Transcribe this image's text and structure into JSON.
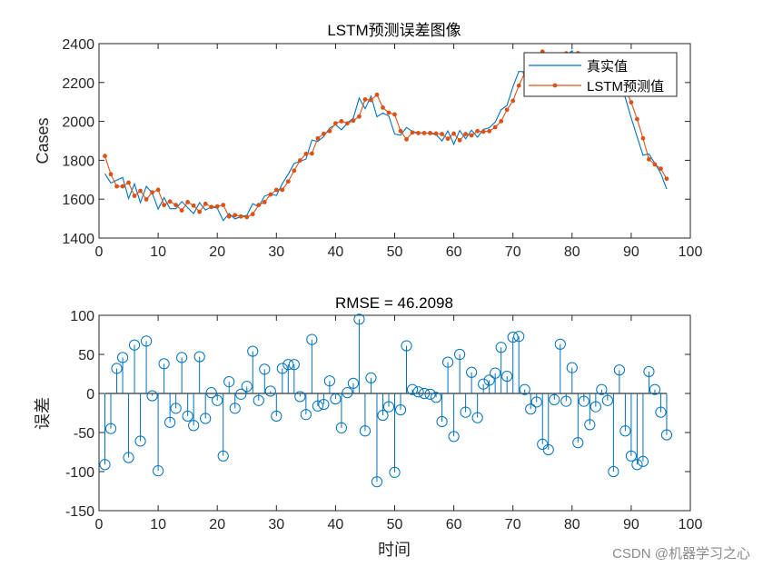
{
  "watermark": "CSDN @机器学习之心",
  "colors": {
    "true_series": "#0072BD",
    "pred_series": "#D95319",
    "error_stems": "#0072BD"
  },
  "chart_data": [
    {
      "type": "line",
      "title": "LSTM预测误差图像",
      "xlabel": "",
      "ylabel": "Cases",
      "xlim": [
        0,
        100
      ],
      "ylim": [
        1400,
        2400
      ],
      "xticks": [
        0,
        10,
        20,
        30,
        40,
        50,
        60,
        70,
        80,
        90,
        100
      ],
      "yticks": [
        1400,
        1600,
        1800,
        2000,
        2200,
        2400
      ],
      "grid": false,
      "legend_position": "top-right",
      "x": [
        1,
        2,
        3,
        4,
        5,
        6,
        7,
        8,
        9,
        10,
        11,
        12,
        13,
        14,
        15,
        16,
        17,
        18,
        19,
        20,
        21,
        22,
        23,
        24,
        25,
        26,
        27,
        28,
        29,
        30,
        31,
        32,
        33,
        34,
        35,
        36,
        37,
        38,
        39,
        40,
        41,
        42,
        43,
        44,
        45,
        46,
        47,
        48,
        49,
        50,
        51,
        52,
        53,
        54,
        55,
        56,
        57,
        58,
        59,
        60,
        61,
        62,
        63,
        64,
        65,
        66,
        67,
        68,
        69,
        70,
        71,
        72,
        73,
        74,
        75,
        76,
        77,
        78,
        79,
        80,
        81,
        82,
        83,
        84,
        85,
        86,
        87,
        88,
        89,
        90,
        91,
        92,
        93,
        94,
        95,
        96
      ],
      "series": [
        {
          "name": "真实值",
          "marker": "none",
          "values": [
            1731,
            1683,
            1698,
            1712,
            1603,
            1679,
            1582,
            1666,
            1632,
            1549,
            1608,
            1551,
            1551,
            1588,
            1556,
            1526,
            1582,
            1544,
            1561,
            1554,
            1490,
            1526,
            1499,
            1510,
            1517,
            1577,
            1561,
            1616,
            1627,
            1619,
            1680,
            1728,
            1784,
            1795,
            1806,
            1904,
            1897,
            1922,
            1966,
            1983,
            1957,
            1991,
            2017,
            2120,
            2065,
            2130,
            2024,
            2043,
            2028,
            1935,
            1929,
            1969,
            1948,
            1942,
            1940,
            1939,
            1932,
            1899,
            1951,
            1882,
            1953,
            1911,
            1955,
            1919,
            1959,
            1967,
            1996,
            2060,
            2082,
            2178,
            2257,
            2255,
            2270,
            2319,
            2294,
            2258,
            2292,
            2353,
            2340,
            2363,
            2288,
            2290,
            2250,
            2243,
            2245,
            2231,
            2135,
            2180,
            2122,
            2018,
            1921,
            1826,
            1833,
            1784,
            1733,
            1652
          ]
        },
        {
          "name": "LSTM预测值",
          "marker": "dot",
          "values": [
            1822,
            1728,
            1666,
            1666,
            1685,
            1617,
            1643,
            1599,
            1635,
            1648,
            1570,
            1588,
            1570,
            1542,
            1585,
            1567,
            1535,
            1576,
            1560,
            1563,
            1570,
            1511,
            1518,
            1511,
            1508,
            1523,
            1570,
            1585,
            1624,
            1648,
            1648,
            1691,
            1747,
            1799,
            1833,
            1835,
            1913,
            1936,
            1950,
            1990,
            2001,
            1990,
            2004,
            2025,
            2113,
            2110,
            2137,
            2071,
            2045,
            2036,
            1950,
            1908,
            1943,
            1940,
            1940,
            1940,
            1937,
            1935,
            1911,
            1937,
            1903,
            1935,
            1928,
            1950,
            1947,
            1950,
            1970,
            2001,
            2060,
            2106,
            2184,
            2250,
            2290,
            2330,
            2359,
            2330,
            2300,
            2290,
            2350,
            2330,
            2351,
            2300,
            2290,
            2260,
            2240,
            2240,
            2235,
            2150,
            2170,
            2098,
            2012,
            1913,
            1805,
            1779,
            1757,
            1705
          ]
        }
      ]
    },
    {
      "type": "stem",
      "title": "RMSE = 46.2098",
      "xlabel": "时间",
      "ylabel": "误差",
      "xlim": [
        0,
        100
      ],
      "ylim": [
        -150,
        100
      ],
      "xticks": [
        0,
        10,
        20,
        30,
        40,
        50,
        60,
        70,
        80,
        90,
        100
      ],
      "yticks": [
        -150,
        -100,
        -50,
        0,
        50,
        100
      ],
      "grid": false,
      "x": [
        1,
        2,
        3,
        4,
        5,
        6,
        7,
        8,
        9,
        10,
        11,
        12,
        13,
        14,
        15,
        16,
        17,
        18,
        19,
        20,
        21,
        22,
        23,
        24,
        25,
        26,
        27,
        28,
        29,
        30,
        31,
        32,
        33,
        34,
        35,
        36,
        37,
        38,
        39,
        40,
        41,
        42,
        43,
        44,
        45,
        46,
        47,
        48,
        49,
        50,
        51,
        52,
        53,
        54,
        55,
        56,
        57,
        58,
        59,
        60,
        61,
        62,
        63,
        64,
        65,
        66,
        67,
        68,
        69,
        70,
        71,
        72,
        73,
        74,
        75,
        76,
        77,
        78,
        79,
        80,
        81,
        82,
        83,
        84,
        85,
        86,
        87,
        88,
        89,
        90,
        91,
        92,
        93,
        94,
        95,
        96
      ],
      "values": [
        -91,
        -45,
        32,
        46,
        -82,
        62,
        -61,
        67,
        -3,
        -99,
        38,
        -37,
        -19,
        46,
        -29,
        -41,
        47,
        -32,
        1,
        -9,
        -80,
        15,
        -19,
        -1,
        9,
        54,
        -9,
        31,
        3,
        -29,
        32,
        37,
        37,
        -4,
        -27,
        69,
        -16,
        -14,
        16,
        -7,
        -44,
        1,
        13,
        95,
        -48,
        20,
        -113,
        -28,
        -17,
        -101,
        -21,
        61,
        5,
        2,
        0,
        -1,
        -5,
        -36,
        40,
        -55,
        50,
        -24,
        27,
        -31,
        12,
        17,
        26,
        59,
        22,
        72,
        73,
        5,
        -20,
        -11,
        -65,
        -72,
        -8,
        63,
        -10,
        33,
        -63,
        -10,
        -40,
        -17,
        5,
        -9,
        -100,
        30,
        -48,
        -80,
        -91,
        -87,
        28,
        5,
        -24,
        -53
      ]
    }
  ]
}
